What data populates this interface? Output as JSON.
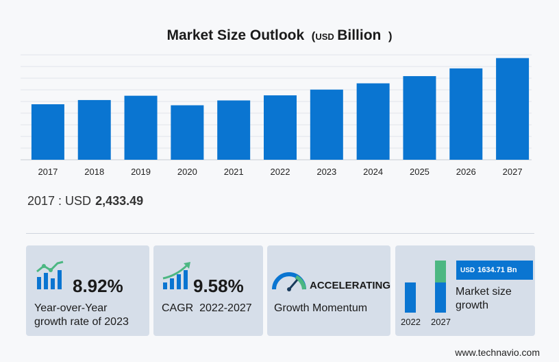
{
  "title": {
    "main": "Market Size Outlook",
    "paren_open": "(",
    "currency": "USD",
    "unit": "Billion",
    "paren_close": ")"
  },
  "chart_data": {
    "type": "bar",
    "title": "Market Size Outlook (USD Billion)",
    "categories": [
      "2017",
      "2018",
      "2019",
      "2020",
      "2021",
      "2022",
      "2023",
      "2024",
      "2025",
      "2026",
      "2027"
    ],
    "values": [
      2433.49,
      2618,
      2807,
      2389,
      2601,
      2824,
      3076,
      3351,
      3667,
      4006,
      4459
    ],
    "ylim": [
      0,
      4600
    ],
    "grid": true,
    "bar_color": "#0a75d1"
  },
  "summary": {
    "label": "2017 : USD",
    "value": "2,433.49"
  },
  "cards": {
    "yoy": {
      "value": "8.92%",
      "line1": "Year-over-Year",
      "line2": "growth rate of 2023",
      "icon": "bar-growth-icon"
    },
    "cagr": {
      "value": "9.58%",
      "line1": "CAGR  2022-2027",
      "icon": "trend-up-icon"
    },
    "momentum": {
      "value": "ACCELERATING",
      "line1": "Growth Momentum",
      "icon": "gauge-icon"
    },
    "market": {
      "badge_currency": "USD",
      "badge_value": "1634.71 Bn",
      "line1": "Market size",
      "line2": "growth",
      "year_start": "2022",
      "year_end": "2027"
    }
  },
  "colors": {
    "accent": "#0a75d1",
    "green": "#4cb782",
    "card_bg": "#d6dee9"
  },
  "footer": "www.technavio.com"
}
